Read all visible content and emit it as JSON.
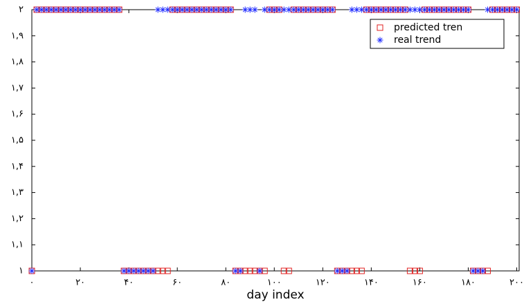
{
  "chart_data": {
    "type": "scatter",
    "xlabel": "day index",
    "x": [
      0,
      2,
      4,
      6,
      8,
      10,
      12,
      14,
      16,
      18,
      20,
      22,
      24,
      26,
      28,
      30,
      32,
      34,
      36,
      38,
      40,
      42,
      44,
      46,
      48,
      50,
      52,
      54,
      56,
      58,
      60,
      62,
      64,
      66,
      68,
      70,
      72,
      74,
      76,
      78,
      80,
      82,
      84,
      86,
      88,
      90,
      92,
      94,
      96,
      98,
      100,
      102,
      104,
      106,
      108,
      110,
      112,
      114,
      116,
      118,
      120,
      122,
      124,
      126,
      128,
      130,
      132,
      134,
      136,
      138,
      140,
      142,
      144,
      146,
      148,
      150,
      152,
      154,
      156,
      158,
      160,
      162,
      164,
      166,
      168,
      170,
      172,
      174,
      176,
      178,
      180,
      182,
      184,
      186,
      188,
      190,
      192,
      194,
      196,
      198,
      200
    ],
    "series": [
      {
        "name": "predicted tren",
        "color": "#e02020",
        "marker": "square",
        "values": [
          1,
          2,
          2,
          2,
          2,
          2,
          2,
          2,
          2,
          2,
          2,
          2,
          2,
          2,
          2,
          2,
          2,
          2,
          2,
          1,
          1,
          1,
          1,
          1,
          1,
          1,
          1,
          1,
          1,
          2,
          2,
          2,
          2,
          2,
          2,
          2,
          2,
          2,
          2,
          2,
          2,
          2,
          1,
          1,
          1,
          1,
          1,
          1,
          1,
          2,
          2,
          2,
          1,
          1,
          2,
          2,
          2,
          2,
          2,
          2,
          2,
          2,
          2,
          1,
          1,
          1,
          1,
          1,
          1,
          2,
          2,
          2,
          2,
          2,
          2,
          2,
          2,
          2,
          1,
          1,
          1,
          2,
          2,
          2,
          2,
          2,
          2,
          2,
          2,
          2,
          2,
          1,
          1,
          1,
          1,
          2,
          2,
          2,
          2,
          2,
          2
        ]
      },
      {
        "name": "real trend",
        "color": "#1f2bff",
        "marker": "asterisk",
        "values": [
          1,
          2,
          2,
          2,
          2,
          2,
          2,
          2,
          2,
          2,
          2,
          2,
          2,
          2,
          2,
          2,
          2,
          2,
          2,
          1,
          1,
          1,
          1,
          1,
          1,
          1,
          2,
          2,
          2,
          2,
          2,
          2,
          2,
          2,
          2,
          2,
          2,
          2,
          2,
          2,
          2,
          2,
          1,
          1,
          2,
          2,
          2,
          1,
          2,
          2,
          2,
          2,
          2,
          2,
          2,
          2,
          2,
          2,
          2,
          2,
          2,
          2,
          2,
          1,
          1,
          1,
          2,
          2,
          2,
          2,
          2,
          2,
          2,
          2,
          2,
          2,
          2,
          2,
          2,
          2,
          2,
          2,
          2,
          2,
          2,
          2,
          2,
          2,
          2,
          2,
          2,
          1,
          1,
          1,
          2,
          2,
          2,
          2,
          2,
          2,
          2
        ]
      }
    ],
    "xlim": [
      0,
      201
    ],
    "ylim": [
      1,
      2
    ],
    "xticks": [
      {
        "value": 0,
        "label": "۰"
      },
      {
        "value": 20,
        "label": "۲۰"
      },
      {
        "value": 40,
        "label": "۴۰"
      },
      {
        "value": 60,
        "label": "۶۰"
      },
      {
        "value": 80,
        "label": "۸۰"
      },
      {
        "value": 100,
        "label": "۱۰۰"
      },
      {
        "value": 120,
        "label": "۱۲۰"
      },
      {
        "value": 140,
        "label": "۱۴۰"
      },
      {
        "value": 160,
        "label": "۱۶۰"
      },
      {
        "value": 180,
        "label": "۱۸۰"
      },
      {
        "value": 200,
        "label": "۲۰۰"
      }
    ],
    "yticks": [
      {
        "value": 1,
        "label": "۱"
      },
      {
        "value": 1.1,
        "label": "۱,۱"
      },
      {
        "value": 1.2,
        "label": "۱,۲"
      },
      {
        "value": 1.3,
        "label": "۱,۳"
      },
      {
        "value": 1.4,
        "label": "۱,۴"
      },
      {
        "value": 1.5,
        "label": "۱,۵"
      },
      {
        "value": 1.6,
        "label": "۱,۶"
      },
      {
        "value": 1.7,
        "label": "۱,۷"
      },
      {
        "value": 1.8,
        "label": "۱,۸"
      },
      {
        "value": 1.9,
        "label": "۱,۹"
      },
      {
        "value": 2,
        "label": "۲"
      }
    ],
    "legend": "upper right",
    "grid": false
  }
}
